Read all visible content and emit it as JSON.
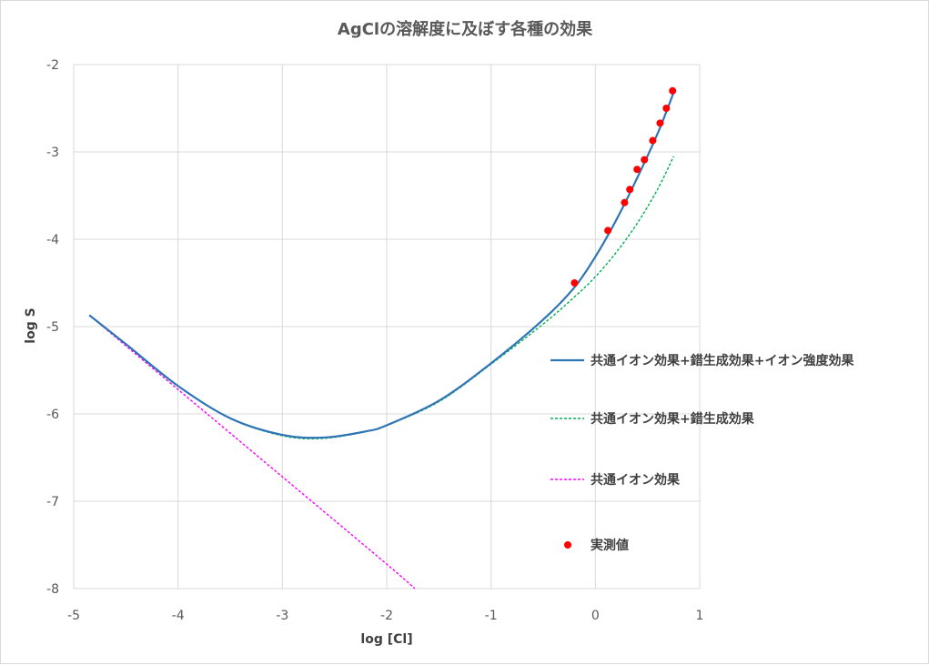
{
  "chart_data": {
    "type": "line",
    "title": "AgClの溶解度に及ぼす各種の効果",
    "xlabel": "log [Cl]",
    "ylabel": "log S",
    "xlim": [
      -5,
      1
    ],
    "ylim": [
      -8,
      -2
    ],
    "xticks": [
      -5,
      -4,
      -3,
      -2,
      -1,
      0,
      1
    ],
    "yticks": [
      -8,
      -7,
      -6,
      -5,
      -4,
      -3,
      -2
    ],
    "xtick_labels": [
      "-5",
      "-4",
      "-3",
      "-2",
      "-1",
      "0",
      "1"
    ],
    "ytick_labels": [
      "-8",
      "-7",
      "-6",
      "-5",
      "-4",
      "-3",
      "-2"
    ],
    "grid": true,
    "legend_position": "right",
    "series": [
      {
        "name": "共通イオン効果+錯生成効果+イオン強度効果",
        "style": "solid",
        "color": "#2e75b6",
        "x": [
          -4.85,
          -4.5,
          -4.0,
          -3.5,
          -3.0,
          -2.6,
          -2.2,
          -2.0,
          -1.5,
          -1.0,
          -0.5,
          -0.2,
          0.0,
          0.2,
          0.4,
          0.6,
          0.75
        ],
        "y": [
          -4.87,
          -5.2,
          -5.68,
          -6.05,
          -6.24,
          -6.27,
          -6.2,
          -6.13,
          -5.85,
          -5.42,
          -4.92,
          -4.55,
          -4.2,
          -3.78,
          -3.3,
          -2.78,
          -2.32
        ]
      },
      {
        "name": "共通イオン効果+錯生成効果",
        "style": "dashed",
        "color": "#00b050",
        "x": [
          -4.85,
          -4.5,
          -4.0,
          -3.5,
          -3.0,
          -2.6,
          -2.2,
          -2.0,
          -1.5,
          -1.0,
          -0.5,
          -0.2,
          0.0,
          0.2,
          0.4,
          0.6,
          0.75
        ],
        "y": [
          -4.87,
          -5.2,
          -5.68,
          -6.05,
          -6.25,
          -6.28,
          -6.2,
          -6.13,
          -5.86,
          -5.43,
          -4.97,
          -4.66,
          -4.43,
          -4.15,
          -3.82,
          -3.42,
          -3.05
        ]
      },
      {
        "name": "共通イオン効果",
        "style": "dashed",
        "color": "#ff00ff",
        "x": [
          -4.85,
          -4.0,
          -3.0,
          -2.0,
          -1.73
        ],
        "y": [
          -4.87,
          -5.72,
          -6.72,
          -7.72,
          -8.0
        ]
      },
      {
        "name": "実測値",
        "style": "markers",
        "color": "#ff0000",
        "x": [
          -0.2,
          0.12,
          0.28,
          0.33,
          0.4,
          0.47,
          0.55,
          0.62,
          0.68,
          0.74
        ],
        "y": [
          -4.5,
          -3.9,
          -3.58,
          -3.43,
          -3.2,
          -3.09,
          -2.87,
          -2.67,
          -2.5,
          -2.3
        ]
      }
    ]
  }
}
